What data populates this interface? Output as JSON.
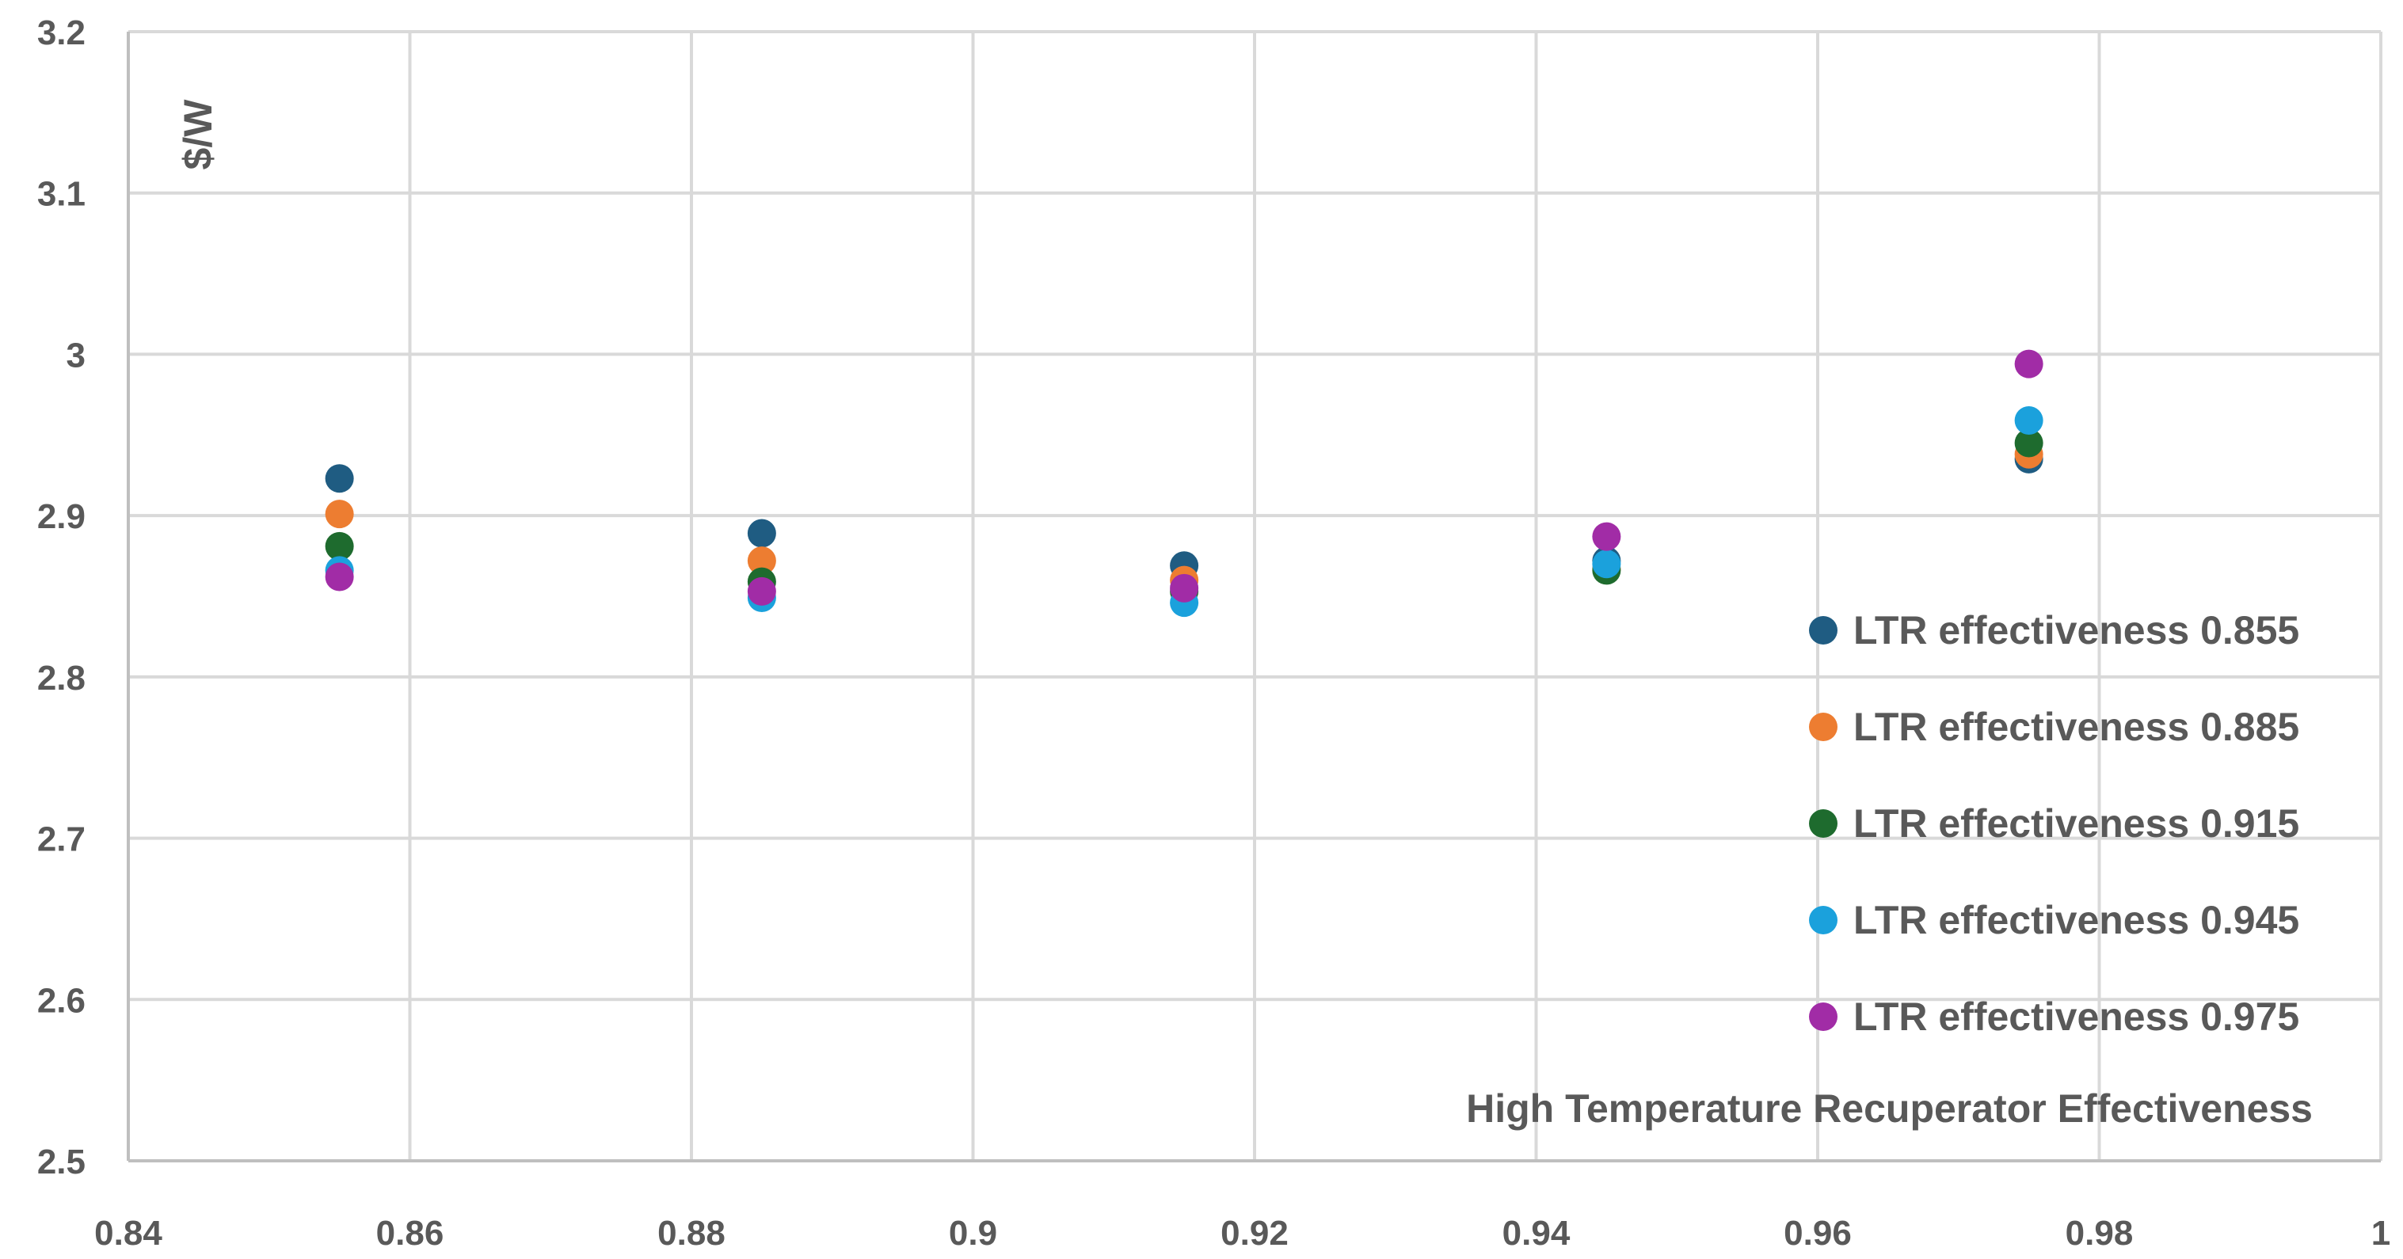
{
  "chart_data": {
    "type": "scatter",
    "title": "",
    "xlabel": "High Temperature Recuperator Effectiveness",
    "ylabel": "$/W",
    "xlim": [
      0.84,
      1.0
    ],
    "ylim": [
      2.5,
      3.2
    ],
    "x_ticks": [
      "0.84",
      "0.86",
      "0.88",
      "0.9",
      "0.92",
      "0.94",
      "0.96",
      "0.98",
      "1"
    ],
    "y_ticks": [
      "2.5",
      "2.6",
      "2.7",
      "2.8",
      "2.9",
      "3",
      "3.1",
      "3.2"
    ],
    "grid": true,
    "legend_position": "right",
    "series": [
      {
        "name": "LTR effectiveness 0.855",
        "color": "#1F5C82",
        "x": [
          0.855,
          0.885,
          0.915,
          0.945,
          0.975
        ],
        "y": [
          2.923,
          2.889,
          2.869,
          2.872,
          2.935
        ]
      },
      {
        "name": "LTR effectiveness 0.885",
        "color": "#ED7D31",
        "x": [
          0.855,
          0.885,
          0.915,
          0.945,
          0.975
        ],
        "y": [
          2.901,
          2.872,
          2.86,
          2.867,
          2.938
        ]
      },
      {
        "name": "LTR effectiveness 0.915",
        "color": "#1E6B2E",
        "x": [
          0.855,
          0.885,
          0.915,
          0.945,
          0.975
        ],
        "y": [
          2.881,
          2.859,
          2.853,
          2.866,
          2.945
        ]
      },
      {
        "name": "LTR effectiveness 0.945",
        "color": "#1BA1DC",
        "x": [
          0.855,
          0.885,
          0.915,
          0.945,
          0.975
        ],
        "y": [
          2.866,
          2.849,
          2.846,
          2.87,
          2.959
        ]
      },
      {
        "name": "LTR effectiveness 0.975",
        "color": "#A12CA6",
        "x": [
          0.855,
          0.885,
          0.915,
          0.945,
          0.975
        ],
        "y": [
          2.862,
          2.853,
          2.855,
          2.887,
          2.994
        ]
      }
    ]
  }
}
